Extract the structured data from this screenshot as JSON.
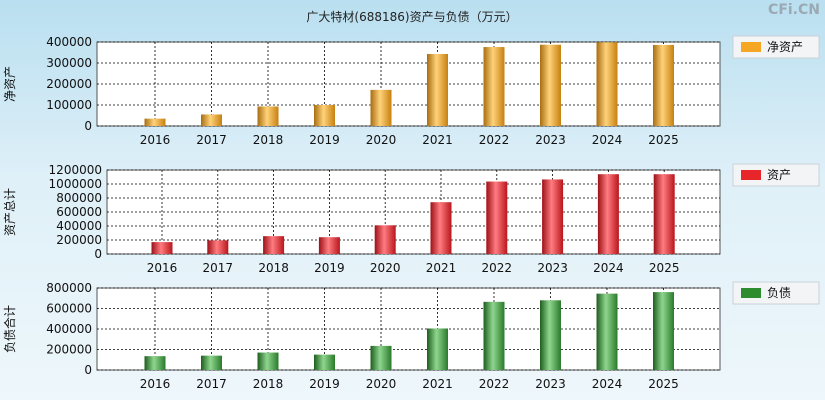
{
  "header": {
    "title": "广大特材(688186)资产与负债（万元）",
    "watermark": "CFi.CN"
  },
  "colors": {
    "net_assets": "#f5a623",
    "total_assets": "#e8252b",
    "liabilities": "#2e8b2e",
    "plot_bg": "#ffffff",
    "grid": "#000000"
  },
  "chart_data": [
    {
      "type": "bar",
      "ylabel": "净资产",
      "categories": [
        "2016",
        "2017",
        "2018",
        "2019",
        "2020",
        "2021",
        "2022",
        "2023",
        "2024",
        "2025"
      ],
      "series": [
        {
          "name": "净资产",
          "values": [
            35000,
            55000,
            93000,
            100000,
            172000,
            343000,
            376000,
            387000,
            399000,
            386000
          ]
        }
      ],
      "ylim": [
        0,
        400000
      ],
      "yticks": [
        "400000",
        "300000",
        "200000",
        "100000",
        "0"
      ],
      "grid": true,
      "legend": "top-right"
    },
    {
      "type": "bar",
      "ylabel": "资产总计",
      "categories": [
        "2016",
        "2017",
        "2018",
        "2019",
        "2020",
        "2021",
        "2022",
        "2023",
        "2024",
        "2025"
      ],
      "series": [
        {
          "name": "资产",
          "values": [
            170000,
            195000,
            255000,
            240000,
            410000,
            740000,
            1035000,
            1065000,
            1140000,
            1140000
          ]
        }
      ],
      "ylim": [
        0,
        1200000
      ],
      "yticks": [
        "1200000",
        "1000000",
        "800000",
        "600000",
        "400000",
        "200000",
        "0"
      ],
      "grid": true,
      "legend": "top-right"
    },
    {
      "type": "bar",
      "ylabel": "负债合计",
      "categories": [
        "2016",
        "2017",
        "2018",
        "2019",
        "2020",
        "2021",
        "2022",
        "2023",
        "2024",
        "2025"
      ],
      "series": [
        {
          "name": "负债",
          "values": [
            135000,
            140000,
            170000,
            150000,
            235000,
            405000,
            665000,
            680000,
            745000,
            760000
          ]
        }
      ],
      "ylim": [
        0,
        800000
      ],
      "yticks": [
        "800000",
        "600000",
        "400000",
        "200000",
        "0"
      ],
      "grid": true,
      "legend": "top-right"
    }
  ]
}
